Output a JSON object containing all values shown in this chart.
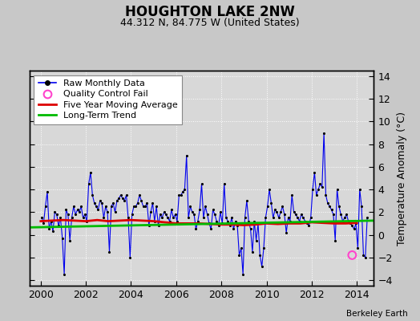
{
  "title": "HOUGHTON LAKE 2NW",
  "subtitle": "44.312 N, 84.775 W (United States)",
  "ylabel_right": "Temperature Anomaly (°C)",
  "watermark": "Berkeley Earth",
  "xlim": [
    1999.5,
    2014.75
  ],
  "ylim": [
    -4.5,
    14.5
  ],
  "yticks": [
    -4,
    -2,
    0,
    2,
    4,
    6,
    8,
    10,
    12,
    14
  ],
  "xticks": [
    2000,
    2002,
    2004,
    2006,
    2008,
    2010,
    2012,
    2014
  ],
  "bg_color": "#c8c8c8",
  "plot_bg_color": "#d8d8d8",
  "raw_color": "#0000ee",
  "raw_marker_color": "#000000",
  "ma_color": "#dd0000",
  "trend_color": "#00bb00",
  "qc_color": "#ff44cc",
  "raw_data_x": [
    2000.042,
    2000.125,
    2000.208,
    2000.292,
    2000.375,
    2000.458,
    2000.542,
    2000.625,
    2000.708,
    2000.792,
    2000.875,
    2000.958,
    2001.042,
    2001.125,
    2001.208,
    2001.292,
    2001.375,
    2001.458,
    2001.542,
    2001.625,
    2001.708,
    2001.792,
    2001.875,
    2001.958,
    2002.042,
    2002.125,
    2002.208,
    2002.292,
    2002.375,
    2002.458,
    2002.542,
    2002.625,
    2002.708,
    2002.792,
    2002.875,
    2002.958,
    2003.042,
    2003.125,
    2003.208,
    2003.292,
    2003.375,
    2003.458,
    2003.542,
    2003.625,
    2003.708,
    2003.792,
    2003.875,
    2003.958,
    2004.042,
    2004.125,
    2004.208,
    2004.292,
    2004.375,
    2004.458,
    2004.542,
    2004.625,
    2004.708,
    2004.792,
    2004.875,
    2004.958,
    2005.042,
    2005.125,
    2005.208,
    2005.292,
    2005.375,
    2005.458,
    2005.542,
    2005.625,
    2005.708,
    2005.792,
    2005.875,
    2005.958,
    2006.042,
    2006.125,
    2006.208,
    2006.292,
    2006.375,
    2006.458,
    2006.542,
    2006.625,
    2006.708,
    2006.792,
    2006.875,
    2006.958,
    2007.042,
    2007.125,
    2007.208,
    2007.292,
    2007.375,
    2007.458,
    2007.542,
    2007.625,
    2007.708,
    2007.792,
    2007.875,
    2007.958,
    2008.042,
    2008.125,
    2008.208,
    2008.292,
    2008.375,
    2008.458,
    2008.542,
    2008.625,
    2008.708,
    2008.792,
    2008.875,
    2008.958,
    2009.042,
    2009.125,
    2009.208,
    2009.292,
    2009.375,
    2009.458,
    2009.542,
    2009.625,
    2009.708,
    2009.792,
    2009.875,
    2009.958,
    2010.042,
    2010.125,
    2010.208,
    2010.292,
    2010.375,
    2010.458,
    2010.542,
    2010.625,
    2010.708,
    2010.792,
    2010.875,
    2010.958,
    2011.042,
    2011.125,
    2011.208,
    2011.292,
    2011.375,
    2011.458,
    2011.542,
    2011.625,
    2011.708,
    2011.792,
    2011.875,
    2011.958,
    2012.042,
    2012.125,
    2012.208,
    2012.292,
    2012.375,
    2012.458,
    2012.542,
    2012.625,
    2012.708,
    2012.792,
    2012.875,
    2012.958,
    2013.042,
    2013.125,
    2013.208,
    2013.292,
    2013.375,
    2013.458,
    2013.542,
    2013.625,
    2013.708,
    2013.792,
    2013.875,
    2013.958,
    2014.042,
    2014.125,
    2014.208,
    2014.292,
    2014.375,
    2014.458
  ],
  "raw_data_y": [
    1.5,
    1.0,
    2.5,
    3.8,
    0.5,
    1.2,
    0.3,
    2.0,
    1.8,
    0.8,
    1.5,
    -0.3,
    -3.5,
    2.2,
    1.8,
    -0.5,
    1.5,
    2.5,
    1.8,
    2.2,
    2.0,
    2.5,
    1.5,
    1.8,
    1.2,
    4.5,
    5.5,
    3.5,
    2.8,
    2.5,
    2.2,
    3.0,
    2.8,
    1.5,
    2.5,
    2.0,
    -1.5,
    2.5,
    2.8,
    2.0,
    3.0,
    3.2,
    3.5,
    3.2,
    3.0,
    3.5,
    1.5,
    -2.0,
    1.8,
    2.5,
    2.5,
    2.8,
    3.5,
    3.0,
    2.5,
    2.5,
    2.8,
    0.8,
    2.0,
    2.8,
    1.2,
    2.5,
    0.8,
    1.8,
    1.5,
    2.0,
    1.8,
    1.5,
    1.2,
    2.2,
    1.5,
    1.8,
    1.2,
    3.5,
    3.5,
    3.8,
    4.0,
    7.0,
    1.5,
    2.5,
    2.0,
    1.8,
    0.5,
    1.2,
    2.2,
    4.5,
    1.5,
    2.5,
    1.8,
    1.0,
    0.5,
    2.2,
    1.8,
    1.2,
    0.8,
    2.0,
    1.0,
    4.5,
    1.5,
    1.2,
    0.8,
    1.5,
    0.5,
    1.2,
    0.8,
    -1.8,
    -1.2,
    -3.5,
    1.5,
    3.0,
    1.2,
    0.5,
    -1.5,
    1.2,
    -0.5,
    1.0,
    -1.8,
    -2.8,
    -1.2,
    1.5,
    2.5,
    4.0,
    2.8,
    1.5,
    2.2,
    2.0,
    1.5,
    2.0,
    2.5,
    1.8,
    0.2,
    1.5,
    1.2,
    3.5,
    2.0,
    1.8,
    1.5,
    1.2,
    1.8,
    1.5,
    1.2,
    1.0,
    0.8,
    1.5,
    4.0,
    5.5,
    3.5,
    4.0,
    4.5,
    4.2,
    9.0,
    3.5,
    2.8,
    2.5,
    2.2,
    1.8,
    -0.5,
    4.0,
    2.5,
    1.8,
    1.2,
    1.5,
    1.8,
    1.2,
    1.0,
    0.8,
    0.5,
    1.0,
    -1.2,
    4.0,
    2.5,
    -1.8,
    -2.0,
    1.5
  ],
  "ma_x": [
    2000.0,
    2000.5,
    2001.0,
    2001.5,
    2002.0,
    2002.5,
    2003.0,
    2003.5,
    2004.0,
    2004.5,
    2005.0,
    2005.5,
    2006.0,
    2006.5,
    2007.0,
    2007.5,
    2008.0,
    2008.5,
    2009.0,
    2009.5,
    2010.0,
    2010.5,
    2011.0,
    2011.5,
    2012.0,
    2012.5,
    2013.0,
    2013.5,
    2014.0
  ],
  "ma_y": [
    1.2,
    1.25,
    1.3,
    1.25,
    1.2,
    1.3,
    1.2,
    1.25,
    1.3,
    1.25,
    1.2,
    1.1,
    1.0,
    1.0,
    1.0,
    0.95,
    0.9,
    0.9,
    0.85,
    0.9,
    1.0,
    0.95,
    1.0,
    1.0,
    1.1,
    1.05,
    1.0,
    1.0,
    1.05
  ],
  "trend_x": [
    1999.5,
    2014.75
  ],
  "trend_y": [
    0.65,
    1.25
  ],
  "qc_x": [
    2013.792
  ],
  "qc_y": [
    -1.8
  ],
  "legend_labels": [
    "Raw Monthly Data",
    "Quality Control Fail",
    "Five Year Moving Average",
    "Long-Term Trend"
  ],
  "title_fontsize": 12,
  "subtitle_fontsize": 9,
  "tick_fontsize": 9,
  "ylabel_fontsize": 9
}
